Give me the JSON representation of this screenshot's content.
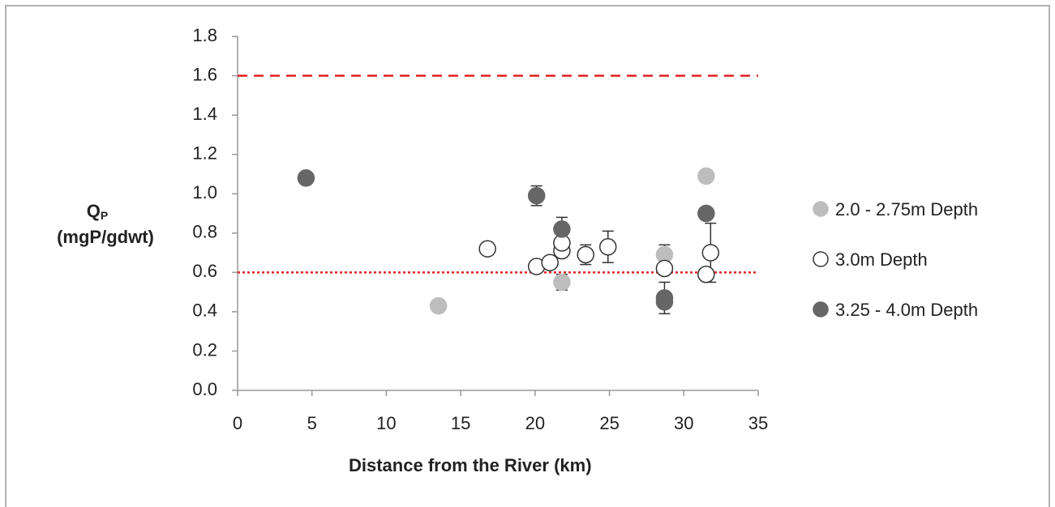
{
  "chart_data": {
    "type": "scatter",
    "xlabel": "Distance from the River (km)",
    "ylabel": {
      "symbol": "Q",
      "subscript": "P",
      "units": "(mgP/gdwt)"
    },
    "xlim": [
      0,
      35
    ],
    "xticks": [
      0,
      5,
      10,
      15,
      20,
      25,
      30,
      35
    ],
    "ylim": [
      0,
      1.8
    ],
    "yticks": [
      {
        "value": 0,
        "label": "0.0"
      },
      0.2,
      0.4,
      0.6,
      0.8,
      {
        "value": 1,
        "label": "1.0"
      },
      1.2,
      1.4,
      1.6,
      1.8
    ],
    "reference_lines": [
      {
        "value": 1.6,
        "style": "dashed",
        "color": "#e02020"
      },
      {
        "value": 0.6,
        "style": "dotted",
        "color": "#e02020"
      }
    ],
    "legend": "right",
    "series": [
      {
        "name": "2.0 - 2.75m Depth",
        "color": "#bdbdbd",
        "stroke": "#bdbdbd",
        "x": [
          13.5,
          21.8,
          28.7,
          31.5
        ],
        "values": [
          0.43,
          0.55,
          0.69,
          1.09
        ],
        "errors": [
          null,
          0.04,
          0.05,
          null
        ]
      },
      {
        "name": "3.0m Depth",
        "color": "#ffffff",
        "stroke": "#333333",
        "x": [
          16.8,
          20.1,
          21.0,
          21.8,
          21.8,
          23.4,
          24.9,
          28.7,
          31.5,
          31.8
        ],
        "values": [
          0.72,
          0.63,
          0.65,
          0.71,
          0.75,
          0.69,
          0.73,
          0.62,
          0.59,
          0.7
        ],
        "errors": [
          null,
          null,
          null,
          null,
          null,
          0.05,
          0.08,
          null,
          null,
          0.15
        ]
      },
      {
        "name": "3.25 - 4.0m Depth",
        "color": "#666666",
        "stroke": "#666666",
        "x": [
          4.6,
          20.1,
          21.8,
          28.7,
          28.7,
          31.5
        ],
        "values": [
          1.08,
          0.99,
          0.82,
          0.47,
          0.45,
          0.9
        ],
        "errors": [
          null,
          0.05,
          0.06,
          0.08,
          null,
          null
        ]
      }
    ]
  }
}
